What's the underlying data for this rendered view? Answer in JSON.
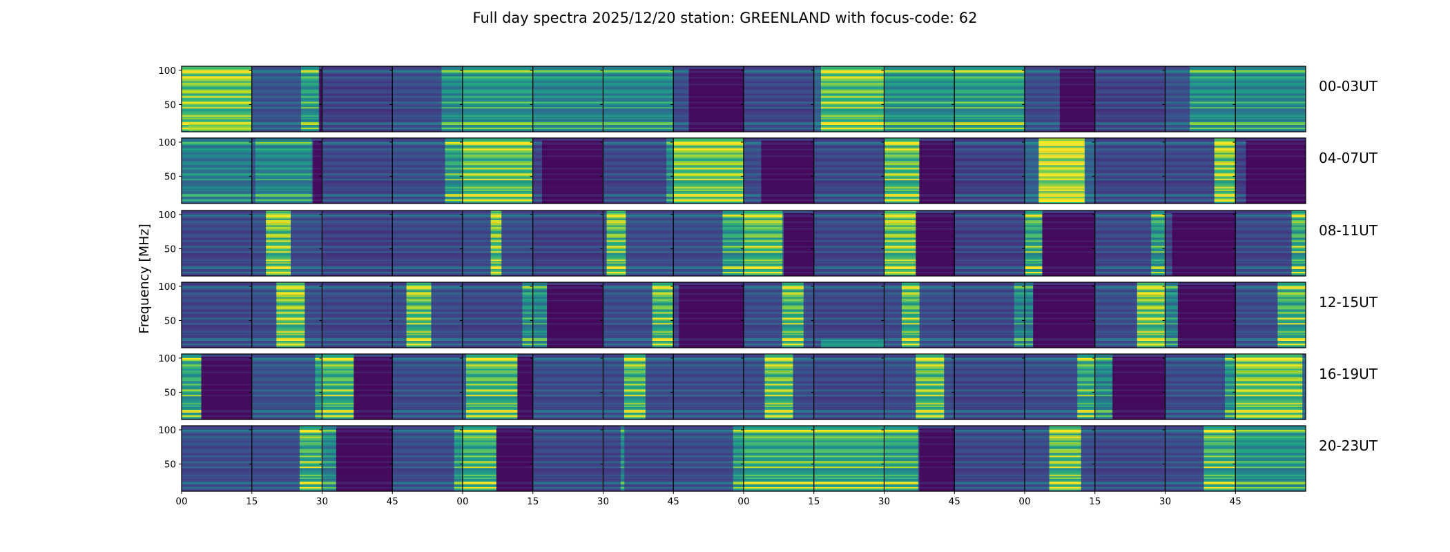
{
  "chart_data": {
    "type": "heatmap",
    "title": "Full day spectra 2025/12/20 station: GREENLAND with focus-code: 62",
    "ylabel": "Frequency [MHz]",
    "xlabel": "",
    "ylim": [
      10,
      106
    ],
    "yticks": [
      50,
      100
    ],
    "ytick_labels": [
      "50",
      "100"
    ],
    "xtick_labels": [
      "00",
      "15",
      "30",
      "45",
      "00",
      "15",
      "30",
      "45",
      "00",
      "15",
      "30",
      "45",
      "00",
      "15",
      "30",
      "45"
    ],
    "colormap": "viridis",
    "grid": false,
    "panels_per_row": 16,
    "panel_minutes": 15,
    "rows": [
      {
        "label": "00-03UT",
        "panels": [
          {
            "base": 0.3,
            "burst": [
              0.0,
              1.0,
              0.55
            ],
            "bright_low": 0.95
          },
          {
            "base": 0.25,
            "burst": [
              0.7,
              0.95,
              0.35
            ],
            "dark": [
              0.96,
              1.0
            ]
          },
          {
            "base": 0.18
          },
          {
            "base": 0.22,
            "burst": [
              0.7,
              1.0,
              0.3
            ]
          },
          {
            "base": 0.28,
            "burst": [
              0.0,
              1.0,
              0.3
            ]
          },
          {
            "base": 0.25,
            "burst": [
              0.0,
              1.0,
              0.25
            ]
          },
          {
            "base": 0.25,
            "burst": [
              0.0,
              1.0,
              0.25
            ]
          },
          {
            "base": 0.22,
            "dark": [
              0.22,
              1.0
            ]
          },
          {
            "base": 0.2
          },
          {
            "base": 0.3,
            "burst": [
              0.1,
              1.0,
              0.5
            ]
          },
          {
            "base": 0.26,
            "burst": [
              0.0,
              1.0,
              0.3
            ]
          },
          {
            "base": 0.26,
            "burst": [
              0.0,
              1.0,
              0.35
            ]
          },
          {
            "base": 0.22,
            "dark": [
              0.5,
              1.0
            ]
          },
          {
            "base": 0.18
          },
          {
            "base": 0.24,
            "burst": [
              0.35,
              1.0,
              0.3
            ]
          },
          {
            "base": 0.26,
            "burst": [
              0.0,
              1.0,
              0.25
            ]
          }
        ]
      },
      {
        "label": "04-07UT",
        "panels": [
          {
            "base": 0.24,
            "burst": [
              0.0,
              1.0,
              0.2
            ]
          },
          {
            "base": 0.25,
            "burst": [
              0.05,
              0.85,
              0.25
            ],
            "dark": [
              0.87,
              1.0
            ]
          },
          {
            "base": 0.2
          },
          {
            "base": 0.22,
            "burst": [
              0.75,
              1.0,
              0.4
            ]
          },
          {
            "base": 0.3,
            "burst": [
              0.0,
              1.0,
              0.5
            ]
          },
          {
            "base": 0.18,
            "dark": [
              0.13,
              1.0
            ]
          },
          {
            "base": 0.2,
            "burst": [
              0.9,
              1.0,
              0.3
            ]
          },
          {
            "base": 0.3,
            "burst": [
              0.0,
              1.0,
              0.55
            ]
          },
          {
            "base": 0.22,
            "dark": [
              0.25,
              1.0
            ]
          },
          {
            "base": 0.2
          },
          {
            "base": 0.25,
            "burst": [
              0.0,
              0.5,
              0.55
            ],
            "dark": [
              0.5,
              1.0
            ]
          },
          {
            "base": 0.18
          },
          {
            "base": 0.3,
            "burst": [
              0.2,
              0.85,
              0.75
            ]
          },
          {
            "base": 0.2
          },
          {
            "base": 0.2,
            "burst": [
              0.7,
              1.0,
              0.7
            ]
          },
          {
            "base": 0.18,
            "dark": [
              0.15,
              1.0
            ]
          }
        ]
      },
      {
        "label": "08-11UT",
        "panels": [
          {
            "base": 0.2
          },
          {
            "base": 0.22,
            "burst": [
              0.2,
              0.55,
              0.65
            ]
          },
          {
            "base": 0.18
          },
          {
            "base": 0.2
          },
          {
            "base": 0.22,
            "burst": [
              0.4,
              0.55,
              0.65
            ]
          },
          {
            "base": 0.18
          },
          {
            "base": 0.22,
            "burst": [
              0.05,
              0.32,
              0.6
            ]
          },
          {
            "base": 0.22,
            "burst": [
              0.7,
              1.0,
              0.4
            ]
          },
          {
            "base": 0.28,
            "burst": [
              0.0,
              0.55,
              0.5
            ],
            "dark": [
              0.57,
              1.0
            ]
          },
          {
            "base": 0.2
          },
          {
            "base": 0.25,
            "burst": [
              0.0,
              0.45,
              0.6
            ],
            "dark": [
              0.45,
              1.0
            ]
          },
          {
            "base": 0.18
          },
          {
            "base": 0.22,
            "burst": [
              0.0,
              0.25,
              0.45
            ],
            "dark": [
              0.25,
              1.0
            ]
          },
          {
            "base": 0.2,
            "burst": [
              0.8,
              1.0,
              0.4
            ]
          },
          {
            "base": 0.18,
            "dark": [
              0.1,
              1.0
            ]
          },
          {
            "base": 0.2,
            "burst": [
              0.8,
              1.0,
              0.5
            ]
          }
        ]
      },
      {
        "label": "12-15UT",
        "panels": [
          {
            "base": 0.2
          },
          {
            "base": 0.22,
            "burst": [
              0.35,
              0.75,
              0.65
            ]
          },
          {
            "base": 0.2
          },
          {
            "base": 0.22,
            "burst": [
              0.2,
              0.55,
              0.6
            ]
          },
          {
            "base": 0.2,
            "burst": [
              0.85,
              1.0,
              0.35
            ]
          },
          {
            "base": 0.2,
            "burst": [
              0.0,
              0.2,
              0.3
            ],
            "dark": [
              0.2,
              1.0
            ]
          },
          {
            "base": 0.22,
            "burst": [
              0.7,
              1.0,
              0.55
            ]
          },
          {
            "base": 0.18,
            "dark": [
              0.08,
              1.0
            ]
          },
          {
            "base": 0.22,
            "burst": [
              0.55,
              0.85,
              0.55
            ]
          },
          {
            "base": 0.2,
            "bright_low": 0.6
          },
          {
            "base": 0.22,
            "burst": [
              0.25,
              0.5,
              0.55
            ]
          },
          {
            "base": 0.2,
            "burst": [
              0.85,
              1.0,
              0.3
            ]
          },
          {
            "base": 0.18,
            "burst": [
              0.0,
              0.12,
              0.3
            ],
            "dark": [
              0.12,
              1.0
            ]
          },
          {
            "base": 0.22,
            "burst": [
              0.6,
              1.0,
              0.65
            ]
          },
          {
            "base": 0.18,
            "burst": [
              0.0,
              0.18,
              0.3
            ],
            "dark": [
              0.18,
              1.0
            ]
          },
          {
            "base": 0.22,
            "burst": [
              0.6,
              1.0,
              0.5
            ]
          }
        ]
      },
      {
        "label": "16-19UT",
        "panels": [
          {
            "base": 0.25,
            "burst": [
              0.0,
              0.28,
              0.4
            ],
            "dark": [
              0.28,
              1.0
            ]
          },
          {
            "base": 0.24,
            "burst": [
              0.9,
              1.0,
              0.35
            ]
          },
          {
            "base": 0.28,
            "burst": [
              0.0,
              0.45,
              0.45
            ],
            "dark": [
              0.45,
              1.0
            ]
          },
          {
            "base": 0.22
          },
          {
            "base": 0.26,
            "burst": [
              0.05,
              0.78,
              0.5
            ],
            "dark": [
              0.78,
              1.0
            ]
          },
          {
            "base": 0.22
          },
          {
            "base": 0.22,
            "burst": [
              0.3,
              0.6,
              0.55
            ]
          },
          {
            "base": 0.22
          },
          {
            "base": 0.22,
            "burst": [
              0.3,
              0.7,
              0.6
            ]
          },
          {
            "base": 0.2
          },
          {
            "base": 0.22,
            "burst": [
              0.45,
              0.85,
              0.6
            ]
          },
          {
            "base": 0.2
          },
          {
            "base": 0.22,
            "burst": [
              0.75,
              1.0,
              0.45
            ]
          },
          {
            "base": 0.2,
            "burst": [
              0.0,
              0.25,
              0.3
            ],
            "dark": [
              0.25,
              1.0
            ]
          },
          {
            "base": 0.22,
            "burst": [
              0.85,
              1.0,
              0.35
            ]
          },
          {
            "base": 0.3,
            "burst": [
              0.0,
              0.95,
              0.55
            ]
          }
        ]
      },
      {
        "label": "20-23UT",
        "panels": [
          {
            "base": 0.22
          },
          {
            "base": 0.22,
            "burst": [
              0.68,
              1.0,
              0.5
            ]
          },
          {
            "base": 0.2,
            "burst": [
              0.0,
              0.2,
              0.3
            ],
            "dark": [
              0.2,
              1.0
            ]
          },
          {
            "base": 0.22,
            "burst": [
              0.88,
              1.0,
              0.35
            ]
          },
          {
            "base": 0.25,
            "burst": [
              0.0,
              0.48,
              0.45
            ],
            "dark": [
              0.48,
              1.0
            ]
          },
          {
            "base": 0.2
          },
          {
            "base": 0.2,
            "burst": [
              0.25,
              0.3,
              0.3
            ]
          },
          {
            "base": 0.22,
            "burst": [
              0.85,
              1.0,
              0.35
            ]
          },
          {
            "base": 0.28,
            "burst": [
              0.0,
              1.0,
              0.4
            ]
          },
          {
            "base": 0.28,
            "burst": [
              0.0,
              1.0,
              0.4
            ]
          },
          {
            "base": 0.25,
            "burst": [
              0.0,
              0.48,
              0.4
            ],
            "dark": [
              0.5,
              1.0
            ]
          },
          {
            "base": 0.2
          },
          {
            "base": 0.22,
            "burst": [
              0.35,
              0.8,
              0.6
            ]
          },
          {
            "base": 0.2
          },
          {
            "base": 0.22,
            "burst": [
              0.55,
              1.0,
              0.5
            ]
          },
          {
            "base": 0.26,
            "burst": [
              0.0,
              1.0,
              0.3
            ]
          }
        ]
      }
    ]
  }
}
